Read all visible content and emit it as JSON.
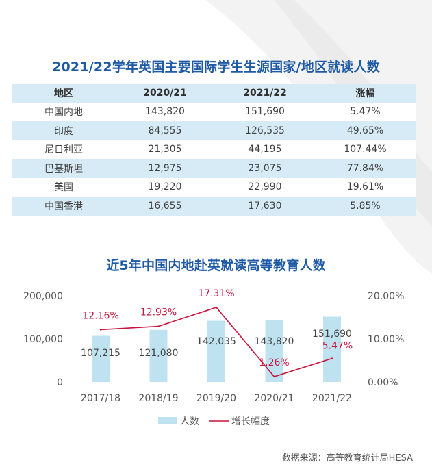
{
  "table": {
    "title": "2021/22学年英国主要国际学生生源国家/地区就读人数",
    "headers": [
      "地区",
      "2020/21",
      "2021/22",
      "涨幅"
    ],
    "rows": [
      [
        "中国内地",
        "143,820",
        "151,690",
        "5.47%"
      ],
      [
        "印度",
        "84,555",
        "126,535",
        "49.65%"
      ],
      [
        "尼日利亚",
        "21,305",
        "44,195",
        "107.44%"
      ],
      [
        "巴基斯坦",
        "12,975",
        "23,075",
        "77.84%"
      ],
      [
        "美国",
        "19,220",
        "22,990",
        "19.61%"
      ],
      [
        "中国香港",
        "16,655",
        "17,630",
        "5.85%"
      ]
    ]
  },
  "chart_data": {
    "type": "bar",
    "title": "近5年中国内地赴英就读高等教育人数",
    "categories": [
      "2017/18",
      "2018/19",
      "2019/20",
      "2020/21",
      "2021/22"
    ],
    "series": [
      {
        "name": "人数",
        "type": "bar",
        "axis": "left",
        "values": [
          107215,
          121080,
          142035,
          143820,
          151690
        ],
        "labels": [
          "107,215",
          "121,080",
          "142,035",
          "143,820",
          "151,690"
        ],
        "color": "#bfe2f1"
      },
      {
        "name": "增长幅度",
        "type": "line",
        "axis": "right",
        "values": [
          12.16,
          12.93,
          17.31,
          1.26,
          5.47
        ],
        "labels": [
          "12.16%",
          "12.93%",
          "17.31%",
          "1.26%",
          "5.47%"
        ],
        "color": "#c8143c"
      }
    ],
    "y_left": {
      "range": [
        0,
        200000
      ],
      "ticks": [
        "0",
        "100,000",
        "200,000"
      ]
    },
    "y_right": {
      "range": [
        0,
        20
      ],
      "ticks": [
        "0.00%",
        "10.00%",
        "20.00%"
      ]
    },
    "grid": false,
    "legend": "bottom"
  },
  "source": "数据来源：高等教育统计局HESA"
}
